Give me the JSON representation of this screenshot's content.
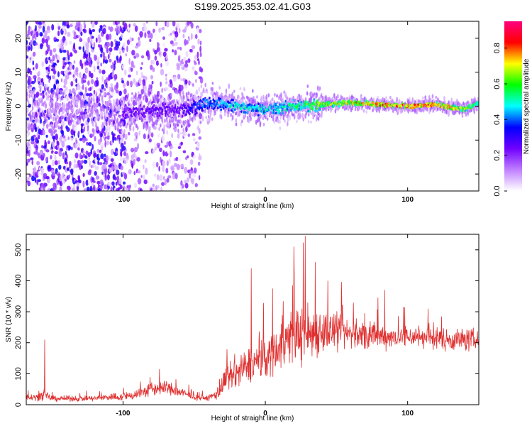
{
  "chart_data": [
    {
      "type": "heatmap",
      "title": "S199.2025.353.02.41.G03",
      "xlabel": "Height of straight line (km)",
      "ylabel": "Frequency (Hz)",
      "xlim": [
        -168,
        150
      ],
      "ylim": [
        -25,
        25
      ],
      "xticks": [
        -100,
        0,
        100
      ],
      "yticks": [
        -20,
        -10,
        0,
        10,
        20
      ],
      "colorbar": {
        "label": "Normalized spectral amplitude",
        "range": [
          0,
          0.95
        ],
        "ticks": [
          "0.0",
          "0.2",
          "0.4",
          "0.6",
          "0.8"
        ],
        "colors": [
          "#ffffff",
          "#c080ff",
          "#7000ff",
          "#0000ff",
          "#00ffff",
          "#00ff00",
          "#ffff00",
          "#ff0000",
          "#ff0080"
        ]
      },
      "ridge": {
        "x": [
          -168,
          -140,
          -100,
          -60,
          -40,
          -20,
          0,
          20,
          40,
          60,
          80,
          100,
          120,
          140,
          150
        ],
        "frequency_hz": [
          0,
          0,
          -2,
          -1,
          1,
          0,
          -1,
          0,
          0.5,
          1,
          0.5,
          0,
          0.5,
          -1,
          1
        ],
        "peak_amplitude": [
          0.15,
          0.15,
          0.25,
          0.25,
          0.45,
          0.5,
          0.5,
          0.55,
          0.65,
          0.75,
          0.8,
          0.85,
          0.8,
          0.7,
          0.55
        ]
      }
    },
    {
      "type": "line",
      "xlabel": "Height of straight line (km)",
      "ylabel": "SNR (10 * v/v)",
      "xlim": [
        -168,
        150
      ],
      "ylim": [
        0,
        550
      ],
      "xticks": [
        -100,
        0,
        100
      ],
      "yticks": [
        0,
        100,
        200,
        300,
        400,
        500
      ],
      "color": "#e03030",
      "envelope": {
        "x": [
          -168,
          -160,
          -155,
          -150,
          -140,
          -130,
          -120,
          -110,
          -100,
          -90,
          -80,
          -70,
          -60,
          -50,
          -40,
          -33,
          -28,
          -20,
          -10,
          0,
          10,
          20,
          30,
          40,
          50,
          60,
          70,
          80,
          90,
          100,
          110,
          120,
          130,
          140,
          150
        ],
        "baseline": [
          25,
          25,
          30,
          20,
          20,
          20,
          20,
          25,
          25,
          35,
          50,
          55,
          40,
          25,
          20,
          40,
          80,
          100,
          130,
          150,
          190,
          230,
          230,
          240,
          230,
          230,
          220,
          220,
          220,
          220,
          220,
          215,
          210,
          210,
          210
        ],
        "amplitude": [
          15,
          20,
          30,
          15,
          15,
          15,
          15,
          20,
          20,
          30,
          40,
          40,
          30,
          15,
          15,
          40,
          70,
          90,
          100,
          110,
          130,
          150,
          160,
          120,
          100,
          80,
          80,
          70,
          60,
          60,
          60,
          60,
          60,
          60,
          60
        ]
      },
      "peaks": [
        {
          "x": -155,
          "y": 210
        },
        {
          "x": 28,
          "y": 545
        },
        {
          "x": 20,
          "y": 510
        },
        {
          "x": 35,
          "y": 460
        },
        {
          "x": -10,
          "y": 440
        },
        {
          "x": 5,
          "y": 375
        },
        {
          "x": 44,
          "y": 400
        },
        {
          "x": 84,
          "y": 370
        }
      ]
    }
  ]
}
